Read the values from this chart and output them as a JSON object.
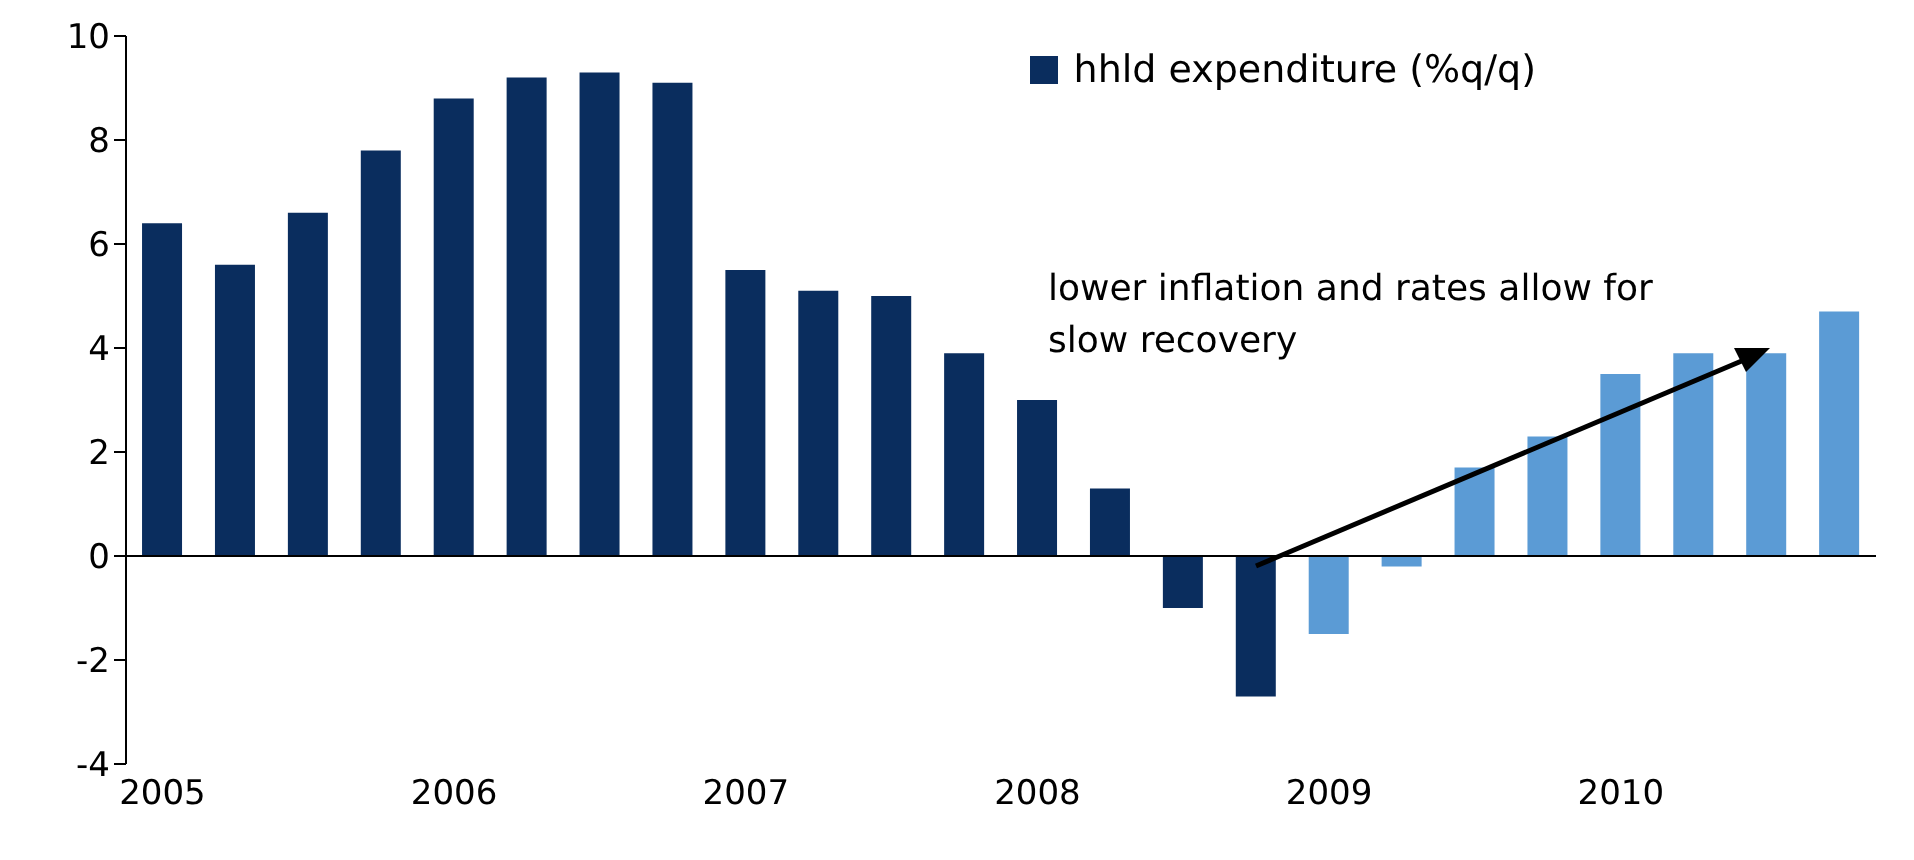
{
  "chart_data": {
    "type": "bar",
    "categories": [
      "2005",
      null,
      null,
      null,
      "2006",
      null,
      null,
      null,
      "2007",
      null,
      null,
      null,
      "2008",
      null,
      null,
      null,
      "2009",
      null,
      null,
      null,
      "2010",
      null,
      null,
      null
    ],
    "series": [
      {
        "name": "hhld expenditure (%q/q)",
        "color": "#0a2d5e",
        "values": [
          6.4,
          5.6,
          6.6,
          7.8,
          8.8,
          9.2,
          9.3,
          9.1,
          5.5,
          5.1,
          5.0,
          3.9,
          3.0,
          1.3,
          -1.0,
          -2.7,
          -1.5,
          -0.2,
          1.7,
          2.3,
          3.5,
          3.9,
          3.9,
          4.7
        ],
        "colors": [
          "#0a2d5e",
          "#0a2d5e",
          "#0a2d5e",
          "#0a2d5e",
          "#0a2d5e",
          "#0a2d5e",
          "#0a2d5e",
          "#0a2d5e",
          "#0a2d5e",
          "#0a2d5e",
          "#0a2d5e",
          "#0a2d5e",
          "#0a2d5e",
          "#0a2d5e",
          "#0a2d5e",
          "#0a2d5e",
          "#5b9bd5",
          "#5b9bd5",
          "#5b9bd5",
          "#5b9bd5",
          "#5b9bd5",
          "#5b9bd5",
          "#5b9bd5",
          "#5b9bd5"
        ]
      }
    ],
    "ref_lines": [
      {
        "axis": "y",
        "value": 0,
        "color": "#000000"
      }
    ],
    "ylim": [
      -4,
      10
    ],
    "yticks": [
      -4,
      -2,
      0,
      2,
      4,
      6,
      8,
      10
    ],
    "legend": "top right",
    "annotations": [
      "lower inflation and rates allow for slow recovery"
    ]
  }
}
